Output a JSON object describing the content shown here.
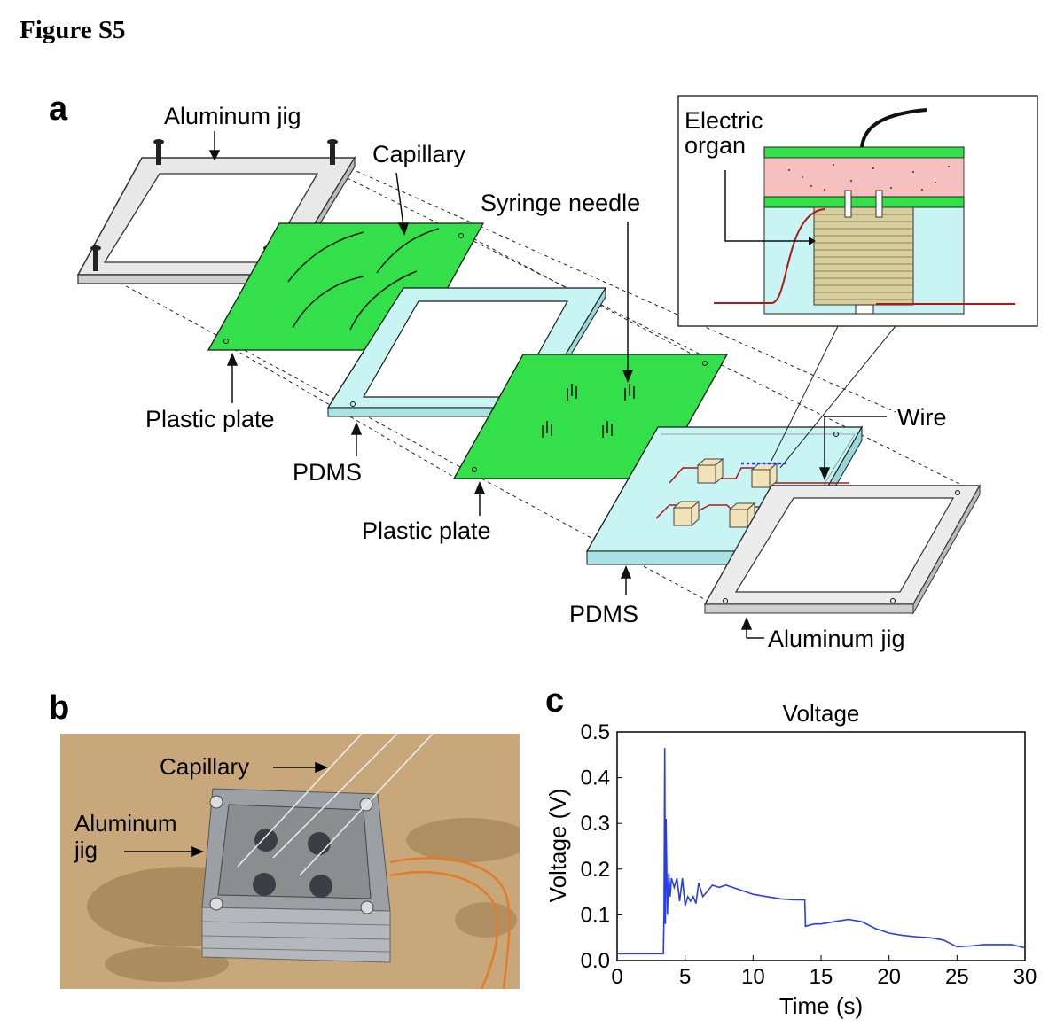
{
  "figure_title": "Figure S5",
  "panels": {
    "a": {
      "letter": "a",
      "labels": {
        "aluminum_jig_top": "Aluminum jig",
        "capillary": "Capillary",
        "syringe_needle": "Syringe needle",
        "plastic_plate_1": "Plastic plate",
        "pdms_1": "PDMS",
        "plastic_plate_2": "Plastic plate",
        "wire": "Wire",
        "pdms_2": "PDMS",
        "aluminum_jig_bottom": "Aluminum jig",
        "electric_organ_line1": "Electric",
        "electric_organ_line2": "organ"
      }
    },
    "b": {
      "letter": "b",
      "labels": {
        "capillary": "Capillary",
        "aluminum_line1": "Aluminum",
        "aluminum_line2": "jig"
      }
    },
    "c": {
      "letter": "c"
    }
  },
  "colors": {
    "plastic_plate": "#33e04a",
    "pdms": "#c8f4f4",
    "organ_pink": "#f7c0c0",
    "wire_red": "#b01818",
    "trace_blue": "#2a3ee6"
  },
  "chart_data": {
    "type": "line",
    "title": "Voltage",
    "xlabel": "Time (s)",
    "ylabel": "Voltage (V)",
    "xlim": [
      0,
      30
    ],
    "ylim": [
      0,
      0.5
    ],
    "xticks": [
      0,
      5,
      10,
      15,
      20,
      25,
      30
    ],
    "yticks": [
      0.0,
      0.1,
      0.2,
      0.3,
      0.4,
      0.5
    ],
    "ytick_labels": [
      "0.0",
      "0.1",
      "0.2",
      "0.3",
      "0.4",
      "0.5"
    ],
    "series": [
      {
        "color": "#2a3ee6",
        "x": [
          0,
          1,
          2,
          3,
          3.4,
          3.45,
          3.5,
          3.55,
          3.6,
          3.7,
          3.8,
          3.9,
          4.0,
          4.2,
          4.4,
          4.6,
          4.8,
          5.0,
          5.2,
          5.4,
          5.6,
          5.8,
          6.0,
          6.3,
          6.6,
          7.0,
          7.5,
          8.0,
          8.5,
          9.0,
          10.0,
          11.0,
          12.0,
          13.0,
          13.8,
          13.85,
          14.5,
          15.0,
          16.0,
          17.0,
          18.0,
          19.0,
          20.0,
          21.0,
          22.0,
          23.0,
          24.0,
          25.0,
          26.0,
          27.0,
          28.0,
          29.0,
          30.0
        ],
        "y": [
          0.015,
          0.015,
          0.015,
          0.015,
          0.015,
          0.1,
          0.465,
          0.08,
          0.31,
          0.1,
          0.19,
          0.14,
          0.18,
          0.16,
          0.18,
          0.13,
          0.18,
          0.12,
          0.14,
          0.13,
          0.14,
          0.125,
          0.17,
          0.14,
          0.15,
          0.165,
          0.16,
          0.165,
          0.16,
          0.155,
          0.145,
          0.14,
          0.135,
          0.133,
          0.133,
          0.075,
          0.08,
          0.08,
          0.085,
          0.09,
          0.085,
          0.07,
          0.06,
          0.055,
          0.052,
          0.05,
          0.045,
          0.03,
          0.032,
          0.035,
          0.035,
          0.035,
          0.028
        ]
      }
    ]
  }
}
